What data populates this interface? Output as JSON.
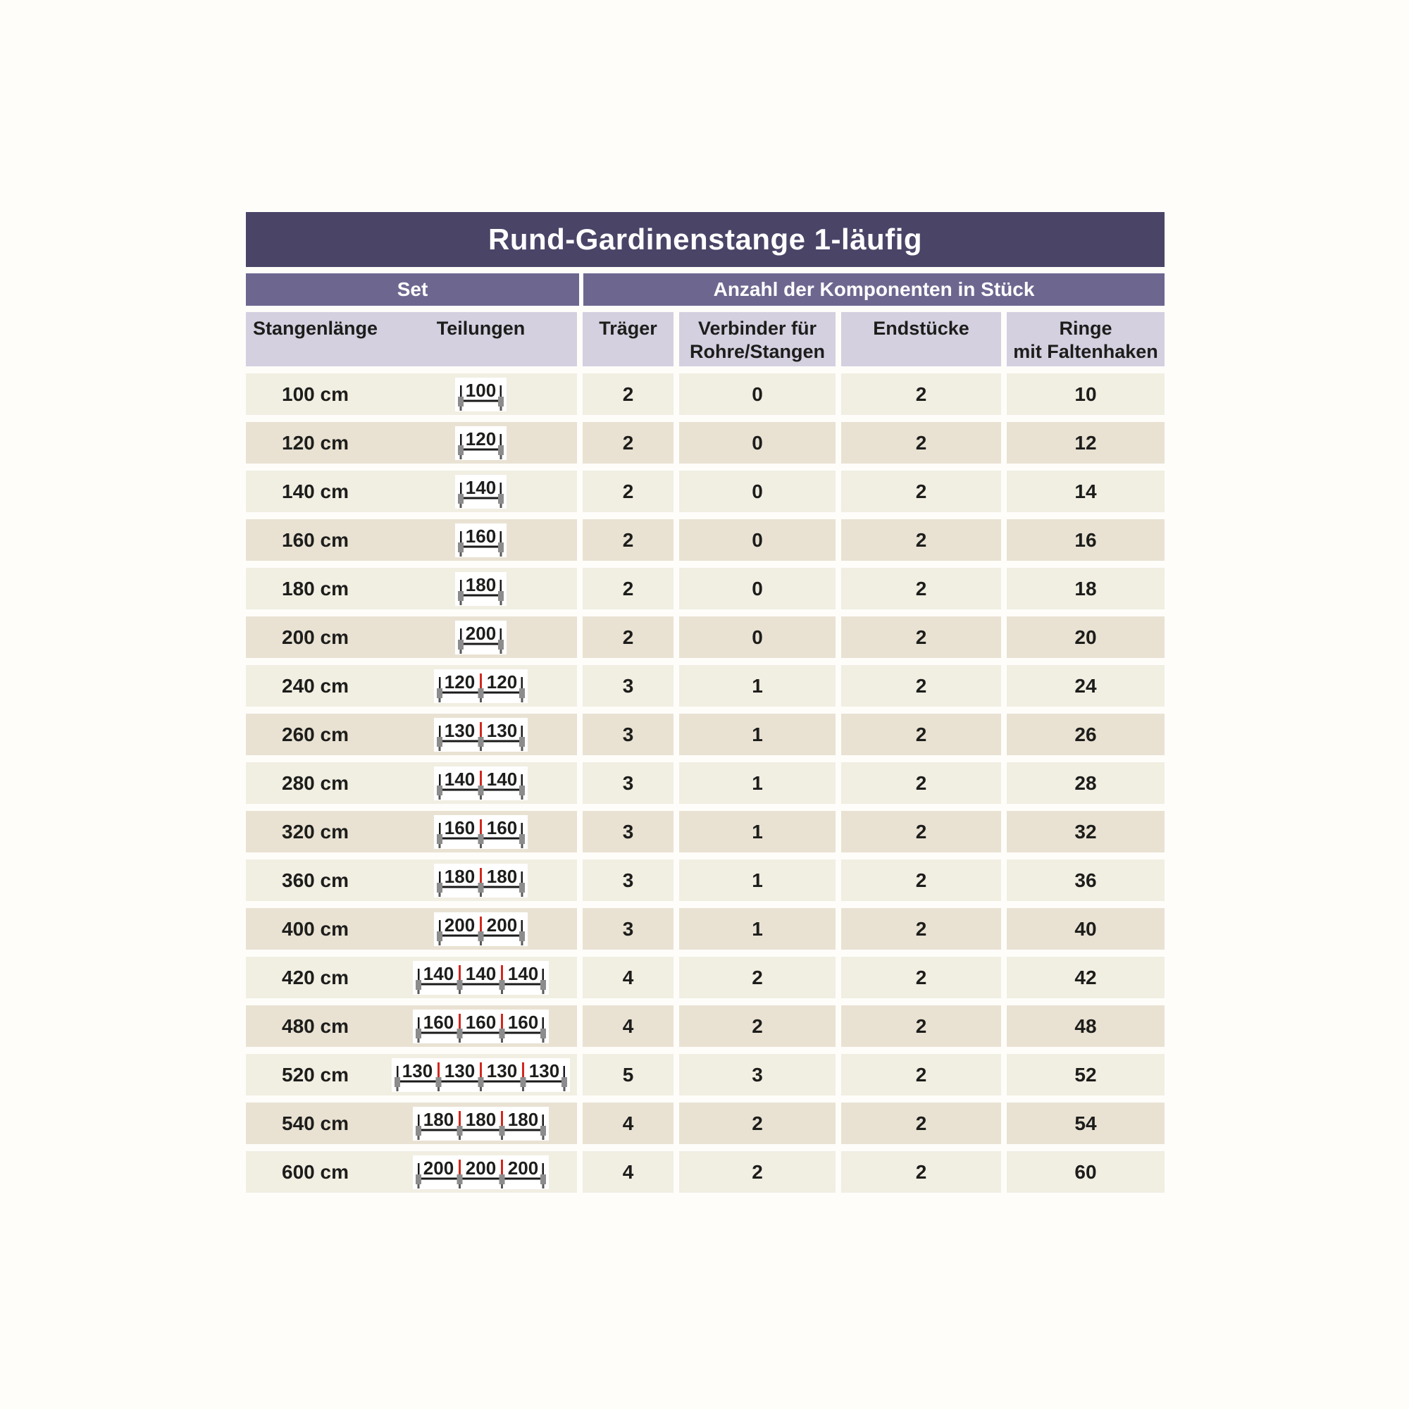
{
  "title": "Rund-Gardinenstange 1-läufig",
  "sections": {
    "set": "Set",
    "components": "Anzahl der Komponenten in Stück"
  },
  "columns": {
    "length": "Stangenlänge",
    "divisions": "Teilungen",
    "brackets": "Träger",
    "connectors_line1": "Verbinder für",
    "connectors_line2": "Rohre/Stangen",
    "end_pieces": "Endstücke",
    "rings_line1": "Ringe",
    "rings_line2": "mit Faltenhaken"
  },
  "colors": {
    "title_bg": "#4a4467",
    "section_bg": "#6d6790",
    "subheader_bg": "#d4d0e0",
    "row_light": "#f1eee2",
    "row_dark": "#e9e2d3",
    "text": "#1d1d1b",
    "diagram_bg": "#ffffff",
    "diagram_rod": "#1a1a1a",
    "diagram_support": "#8c8c8c",
    "diagram_connector_red": "#d2281e"
  },
  "rows": [
    {
      "length": "100 cm",
      "segments": [
        100
      ],
      "traeger": "2",
      "verbinder": "0",
      "endstuecke": "2",
      "ringe": "10"
    },
    {
      "length": "120 cm",
      "segments": [
        120
      ],
      "traeger": "2",
      "verbinder": "0",
      "endstuecke": "2",
      "ringe": "12"
    },
    {
      "length": "140 cm",
      "segments": [
        140
      ],
      "traeger": "2",
      "verbinder": "0",
      "endstuecke": "2",
      "ringe": "14"
    },
    {
      "length": "160 cm",
      "segments": [
        160
      ],
      "traeger": "2",
      "verbinder": "0",
      "endstuecke": "2",
      "ringe": "16"
    },
    {
      "length": "180 cm",
      "segments": [
        180
      ],
      "traeger": "2",
      "verbinder": "0",
      "endstuecke": "2",
      "ringe": "18"
    },
    {
      "length": "200 cm",
      "segments": [
        200
      ],
      "traeger": "2",
      "verbinder": "0",
      "endstuecke": "2",
      "ringe": "20"
    },
    {
      "length": "240 cm",
      "segments": [
        120,
        120
      ],
      "traeger": "3",
      "verbinder": "1",
      "endstuecke": "2",
      "ringe": "24"
    },
    {
      "length": "260 cm",
      "segments": [
        130,
        130
      ],
      "traeger": "3",
      "verbinder": "1",
      "endstuecke": "2",
      "ringe": "26"
    },
    {
      "length": "280 cm",
      "segments": [
        140,
        140
      ],
      "traeger": "3",
      "verbinder": "1",
      "endstuecke": "2",
      "ringe": "28"
    },
    {
      "length": "320 cm",
      "segments": [
        160,
        160
      ],
      "traeger": "3",
      "verbinder": "1",
      "endstuecke": "2",
      "ringe": "32"
    },
    {
      "length": "360 cm",
      "segments": [
        180,
        180
      ],
      "traeger": "3",
      "verbinder": "1",
      "endstuecke": "2",
      "ringe": "36"
    },
    {
      "length": "400 cm",
      "segments": [
        200,
        200
      ],
      "traeger": "3",
      "verbinder": "1",
      "endstuecke": "2",
      "ringe": "40"
    },
    {
      "length": "420 cm",
      "segments": [
        140,
        140,
        140
      ],
      "traeger": "4",
      "verbinder": "2",
      "endstuecke": "2",
      "ringe": "42"
    },
    {
      "length": "480 cm",
      "segments": [
        160,
        160,
        160
      ],
      "traeger": "4",
      "verbinder": "2",
      "endstuecke": "2",
      "ringe": "48"
    },
    {
      "length": "520 cm",
      "segments": [
        130,
        130,
        130,
        130
      ],
      "traeger": "5",
      "verbinder": "3",
      "endstuecke": "2",
      "ringe": "52"
    },
    {
      "length": "540 cm",
      "segments": [
        180,
        180,
        180
      ],
      "traeger": "4",
      "verbinder": "2",
      "endstuecke": "2",
      "ringe": "54"
    },
    {
      "length": "600 cm",
      "segments": [
        200,
        200,
        200
      ],
      "traeger": "4",
      "verbinder": "2",
      "endstuecke": "2",
      "ringe": "60"
    }
  ]
}
